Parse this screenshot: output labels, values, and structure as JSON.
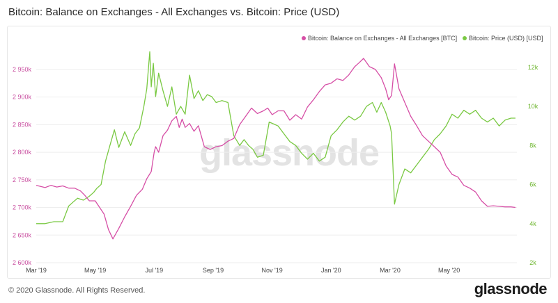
{
  "title": "Bitcoin: Balance on Exchanges - All Exchanges vs. Bitcoin: Price (USD)",
  "footer": "© 2020 Glassnode. All Rights Reserved.",
  "brand": "glassnode",
  "watermark": "glassnode",
  "colors": {
    "balance": "#d64fa6",
    "price": "#7ac943",
    "grid": "#eeeeee"
  },
  "chart_data": {
    "type": "line",
    "title": "Bitcoin: Balance on Exchanges - All Exchanges vs. Bitcoin: Price (USD)",
    "x_tick_labels": [
      "Mar '19",
      "May '19",
      "Jul '19",
      "Sep '19",
      "Nov '19",
      "Jan '20",
      "Mar '20",
      "May '20"
    ],
    "x_tick_index": [
      0,
      2,
      4,
      6,
      8,
      10,
      12,
      14
    ],
    "x_range": [
      0,
      16.3
    ],
    "y_left": {
      "ticks": [
        2600,
        2650,
        2700,
        2750,
        2800,
        2850,
        2900,
        2950
      ],
      "tick_labels": [
        "2 600k",
        "2 650k",
        "2 700k",
        "2 750k",
        "2 800k",
        "2 850k",
        "2 900k",
        "2 950k"
      ],
      "range": [
        2600,
        2975
      ]
    },
    "y_right": {
      "ticks": [
        2,
        4,
        6,
        8,
        10,
        12
      ],
      "tick_labels": [
        "2k",
        "4k",
        "6k",
        "8k",
        "10k",
        "12k"
      ],
      "range": [
        2,
        12.6
      ]
    },
    "grid": "horizontal",
    "legend_position": "top-right",
    "series": [
      {
        "name": "Bitcoin: Balance on Exchanges - All Exchanges [BTC]",
        "axis": "left",
        "x": [
          0,
          0.15,
          0.3,
          0.5,
          0.7,
          0.9,
          1.1,
          1.3,
          1.5,
          1.65,
          1.8,
          2.0,
          2.15,
          2.3,
          2.45,
          2.6,
          2.8,
          3.0,
          3.2,
          3.4,
          3.6,
          3.75,
          3.9,
          4.0,
          4.05,
          4.15,
          4.3,
          4.45,
          4.6,
          4.75,
          4.85,
          4.95,
          5.05,
          5.2,
          5.35,
          5.5,
          5.7,
          5.9,
          6.1,
          6.3,
          6.5,
          6.7,
          6.9,
          7.1,
          7.3,
          7.5,
          7.7,
          7.85,
          8.0,
          8.2,
          8.4,
          8.6,
          8.8,
          9.0,
          9.2,
          9.4,
          9.6,
          9.8,
          10.0,
          10.2,
          10.4,
          10.6,
          10.8,
          10.95,
          11.1,
          11.3,
          11.5,
          11.7,
          11.85,
          11.95,
          12.05,
          12.15,
          12.3,
          12.5,
          12.7,
          12.9,
          13.1,
          13.3,
          13.5,
          13.7,
          13.9,
          14.1,
          14.3,
          14.5,
          14.7,
          14.9,
          15.1,
          15.3,
          15.5,
          15.7,
          15.9,
          16.1,
          16.25
        ],
        "values": [
          2740,
          2738,
          2736,
          2740,
          2737,
          2739,
          2735,
          2735,
          2730,
          2722,
          2712,
          2712,
          2700,
          2688,
          2660,
          2643,
          2662,
          2683,
          2702,
          2722,
          2733,
          2752,
          2765,
          2800,
          2810,
          2800,
          2830,
          2840,
          2857,
          2865,
          2845,
          2860,
          2845,
          2852,
          2838,
          2848,
          2810,
          2805,
          2810,
          2812,
          2820,
          2825,
          2850,
          2865,
          2880,
          2870,
          2875,
          2880,
          2868,
          2875,
          2875,
          2858,
          2868,
          2860,
          2882,
          2895,
          2910,
          2922,
          2925,
          2933,
          2930,
          2940,
          2955,
          2962,
          2970,
          2955,
          2950,
          2935,
          2915,
          2895,
          2903,
          2960,
          2915,
          2890,
          2865,
          2848,
          2830,
          2820,
          2810,
          2800,
          2775,
          2760,
          2755,
          2740,
          2735,
          2728,
          2712,
          2702,
          2703,
          2702,
          2701,
          2701,
          2700
        ]
      },
      {
        "name": "Bitcoin: Price (USD) [USD]",
        "axis": "right",
        "x": [
          0,
          0.3,
          0.6,
          0.9,
          1.1,
          1.25,
          1.4,
          1.6,
          1.8,
          1.95,
          2.05,
          2.2,
          2.35,
          2.5,
          2.65,
          2.8,
          3.0,
          3.2,
          3.35,
          3.5,
          3.65,
          3.75,
          3.85,
          3.9,
          3.97,
          4.05,
          4.15,
          4.3,
          4.45,
          4.6,
          4.75,
          4.9,
          5.05,
          5.2,
          5.35,
          5.5,
          5.65,
          5.8,
          5.95,
          6.1,
          6.3,
          6.5,
          6.7,
          6.9,
          7.05,
          7.2,
          7.35,
          7.5,
          7.7,
          7.9,
          8.05,
          8.2,
          8.4,
          8.6,
          8.8,
          9.0,
          9.2,
          9.4,
          9.6,
          9.8,
          10.0,
          10.2,
          10.4,
          10.6,
          10.8,
          11.0,
          11.2,
          11.4,
          11.55,
          11.7,
          11.85,
          12.0,
          12.05,
          12.15,
          12.3,
          12.5,
          12.7,
          12.9,
          13.1,
          13.3,
          13.5,
          13.7,
          13.9,
          14.1,
          14.3,
          14.5,
          14.7,
          14.9,
          15.1,
          15.3,
          15.5,
          15.7,
          15.9,
          16.1,
          16.25
        ],
        "values": [
          4.0,
          4.0,
          4.1,
          4.1,
          4.9,
          5.1,
          5.3,
          5.2,
          5.4,
          5.6,
          5.8,
          6.0,
          7.2,
          8.0,
          8.8,
          7.9,
          8.7,
          8.0,
          8.6,
          8.9,
          10.0,
          10.9,
          12.8,
          11.0,
          12.2,
          10.5,
          11.7,
          10.8,
          10.0,
          11.0,
          9.6,
          10.0,
          9.6,
          11.6,
          10.4,
          10.8,
          10.3,
          10.6,
          10.5,
          10.2,
          10.3,
          10.2,
          8.5,
          8.0,
          8.3,
          8.0,
          7.8,
          7.4,
          7.5,
          9.2,
          9.1,
          9.0,
          8.6,
          8.2,
          8.0,
          7.6,
          7.3,
          7.6,
          7.2,
          7.4,
          8.5,
          8.8,
          9.2,
          9.5,
          9.3,
          9.5,
          10.0,
          10.2,
          9.7,
          10.2,
          9.7,
          9.0,
          8.6,
          5.0,
          6.0,
          6.8,
          6.6,
          7.0,
          7.4,
          7.8,
          8.3,
          8.6,
          9.0,
          9.6,
          9.4,
          9.8,
          9.6,
          9.8,
          9.4,
          9.2,
          9.4,
          9.0,
          9.3,
          9.4,
          9.4
        ]
      }
    ]
  }
}
